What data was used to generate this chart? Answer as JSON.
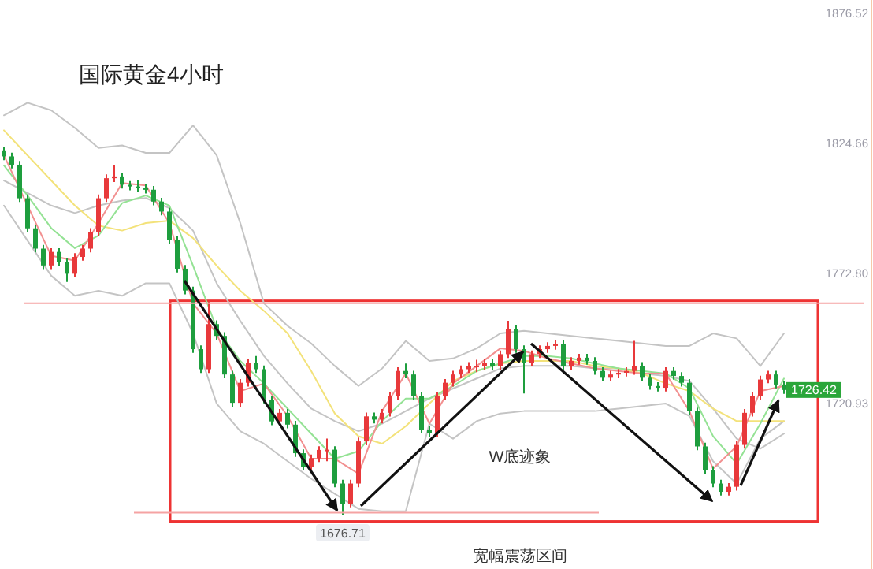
{
  "chart_data": [
    {
      "type": "candlestick",
      "title": "国际黄金4小时",
      "categories": [
        null,
        null,
        null,
        null,
        null,
        null,
        null,
        null,
        null,
        null,
        null,
        null,
        null,
        null,
        null,
        null,
        null,
        null,
        null,
        null,
        null,
        null,
        null,
        null,
        null,
        null,
        null,
        null,
        null,
        null,
        null,
        null,
        null,
        null,
        null,
        null,
        null,
        null,
        null,
        null,
        null,
        null,
        null,
        null,
        null,
        null,
        null,
        null,
        null,
        null,
        null,
        null,
        null,
        null,
        null,
        null,
        null,
        null,
        null,
        null,
        null,
        null,
        null,
        null,
        null,
        null,
        null,
        null,
        null,
        null,
        null,
        null,
        null,
        null,
        null,
        null,
        null,
        null,
        null,
        null,
        null,
        null,
        null,
        null,
        null,
        null,
        null,
        null,
        null,
        null,
        null,
        null,
        null,
        null,
        null,
        null,
        null,
        null,
        null,
        null
      ],
      "ohlc": [
        [
          1822.0,
          1823.5,
          1818.1,
          1819.6
        ],
        [
          1819.6,
          1821.1,
          1814.8,
          1816.3
        ],
        [
          1816.3,
          1817.8,
          1801.4,
          1802.9
        ],
        [
          1802.9,
          1804.4,
          1789.4,
          1790.9
        ],
        [
          1790.9,
          1792.4,
          1781.3,
          1782.8
        ],
        [
          1782.8,
          1784.3,
          1774.6,
          1776.1
        ],
        [
          1776.1,
          1783.0,
          1774.6,
          1781.5
        ],
        [
          1781.5,
          1783.0,
          1776.0,
          1777.5
        ],
        [
          1777.5,
          1779.0,
          1769.5,
          1772.8
        ],
        [
          1772.8,
          1781.0,
          1771.3,
          1779.5
        ],
        [
          1779.5,
          1784.3,
          1778.0,
          1782.8
        ],
        [
          1782.8,
          1791.0,
          1781.3,
          1789.5
        ],
        [
          1789.5,
          1804.4,
          1788.0,
          1802.9
        ],
        [
          1802.9,
          1812.4,
          1801.4,
          1810.9
        ],
        [
          1810.9,
          1816.0,
          1809.4,
          1811.6
        ],
        [
          1811.6,
          1813.1,
          1806.8,
          1808.3
        ],
        [
          1808.3,
          1809.8,
          1806.1,
          1807.6
        ],
        [
          1807.6,
          1810.0,
          1805.4,
          1806.9
        ],
        [
          1806.9,
          1808.4,
          1804.8,
          1806.3
        ],
        [
          1806.3,
          1807.8,
          1800.1,
          1801.6
        ],
        [
          1801.6,
          1803.1,
          1796.1,
          1797.6
        ],
        [
          1797.6,
          1799.1,
          1784.7,
          1786.2
        ],
        [
          1786.2,
          1787.7,
          1773.3,
          1774.8
        ],
        [
          1774.8,
          1776.3,
          1764.6,
          1766.1
        ],
        [
          1766.1,
          1767.6,
          1741.2,
          1742.7
        ],
        [
          1742.7,
          1744.2,
          1733.2,
          1734.7
        ],
        [
          1734.7,
          1762.0,
          1733.2,
          1752.7
        ],
        [
          1752.7,
          1754.2,
          1746.5,
          1748.0
        ],
        [
          1748.0,
          1749.5,
          1731.1,
          1732.6
        ],
        [
          1732.6,
          1734.1,
          1719.8,
          1721.3
        ],
        [
          1721.3,
          1730.8,
          1719.8,
          1729.3
        ],
        [
          1729.3,
          1738.8,
          1727.8,
          1737.3
        ],
        [
          1737.3,
          1740.0,
          1733.2,
          1734.7
        ],
        [
          1734.7,
          1736.2,
          1721.1,
          1722.6
        ],
        [
          1722.6,
          1724.1,
          1712.4,
          1713.9
        ],
        [
          1713.9,
          1718.8,
          1712.4,
          1717.3
        ],
        [
          1717.3,
          1718.8,
          1711.1,
          1712.6
        ],
        [
          1712.6,
          1714.1,
          1699.7,
          1701.2
        ],
        [
          1701.2,
          1702.7,
          1694.3,
          1695.8
        ],
        [
          1695.8,
          1700.7,
          1694.3,
          1699.2
        ],
        [
          1699.2,
          1704.0,
          1697.7,
          1702.5
        ],
        [
          1702.5,
          1707.0,
          1698.0,
          1702.6
        ],
        [
          1702.6,
          1704.0,
          1687.6,
          1689.1
        ],
        [
          1689.1,
          1690.6,
          1676.71,
          1681.1
        ],
        [
          1681.1,
          1690.6,
          1679.6,
          1689.1
        ],
        [
          1689.1,
          1707.4,
          1687.6,
          1705.9
        ],
        [
          1705.9,
          1717.4,
          1704.4,
          1715.9
        ],
        [
          1715.9,
          1717.4,
          1713.1,
          1714.6
        ],
        [
          1714.6,
          1718.8,
          1713.1,
          1717.3
        ],
        [
          1717.3,
          1725.5,
          1715.8,
          1724.0
        ],
        [
          1724.0,
          1735.5,
          1722.5,
          1734.0
        ],
        [
          1734.0,
          1737.0,
          1731.1,
          1732.6
        ],
        [
          1732.6,
          1734.1,
          1722.5,
          1724.0
        ],
        [
          1724.0,
          1725.5,
          1709.1,
          1710.6
        ],
        [
          1710.6,
          1712.1,
          1707.7,
          1709.2
        ],
        [
          1709.2,
          1725.5,
          1707.7,
          1724.0
        ],
        [
          1724.0,
          1730.8,
          1722.5,
          1729.3
        ],
        [
          1729.3,
          1734.1,
          1727.8,
          1732.6
        ],
        [
          1732.6,
          1736.2,
          1731.1,
          1734.7
        ],
        [
          1734.7,
          1737.5,
          1733.2,
          1736.0
        ],
        [
          1736.0,
          1738.5,
          1733.5,
          1736.1
        ],
        [
          1736.1,
          1738.8,
          1734.5,
          1737.3
        ],
        [
          1737.3,
          1738.8,
          1734.5,
          1736.0
        ],
        [
          1736.0,
          1742.2,
          1734.5,
          1740.7
        ],
        [
          1740.7,
          1754.0,
          1739.2,
          1750.7
        ],
        [
          1750.7,
          1752.2,
          1741.2,
          1742.7
        ],
        [
          1742.7,
          1744.2,
          1725.0,
          1737.3
        ],
        [
          1737.3,
          1742.2,
          1735.8,
          1740.7
        ],
        [
          1740.7,
          1744.2,
          1739.2,
          1742.7
        ],
        [
          1742.7,
          1745.5,
          1741.2,
          1744.0
        ],
        [
          1744.0,
          1746.2,
          1742.5,
          1744.7
        ],
        [
          1744.7,
          1746.2,
          1734.5,
          1736.0
        ],
        [
          1736.0,
          1739.5,
          1734.5,
          1738.0
        ],
        [
          1738.0,
          1740.8,
          1736.5,
          1739.3
        ],
        [
          1739.3,
          1740.8,
          1736.5,
          1738.0
        ],
        [
          1738.0,
          1739.5,
          1732.5,
          1734.0
        ],
        [
          1734.0,
          1735.5,
          1729.8,
          1731.3
        ],
        [
          1731.3,
          1734.1,
          1729.8,
          1732.6
        ],
        [
          1732.6,
          1734.8,
          1731.1,
          1733.3
        ],
        [
          1733.3,
          1735.5,
          1731.8,
          1734.0
        ],
        [
          1734.0,
          1746.0,
          1732.5,
          1736.0
        ],
        [
          1736.0,
          1737.5,
          1729.8,
          1731.3
        ],
        [
          1731.3,
          1732.8,
          1726.5,
          1728.0
        ],
        [
          1728.0,
          1729.5,
          1725.8,
          1727.3
        ],
        [
          1727.3,
          1735.5,
          1725.8,
          1734.0
        ],
        [
          1734.0,
          1735.5,
          1730.5,
          1732.0
        ],
        [
          1732.0,
          1733.5,
          1727.8,
          1729.3
        ],
        [
          1729.3,
          1730.8,
          1716.4,
          1717.9
        ],
        [
          1717.9,
          1719.4,
          1702.4,
          1703.9
        ],
        [
          1703.9,
          1705.4,
          1693.0,
          1694.5
        ],
        [
          1694.5,
          1696.0,
          1687.6,
          1689.1
        ],
        [
          1689.1,
          1690.6,
          1684.3,
          1685.8
        ],
        [
          1685.8,
          1689.3,
          1684.3,
          1687.8
        ],
        [
          1687.8,
          1706.0,
          1686.3,
          1704.5
        ],
        [
          1704.5,
          1718.8,
          1703.0,
          1717.3
        ],
        [
          1717.3,
          1725.5,
          1715.8,
          1724.0
        ],
        [
          1724.0,
          1732.1,
          1722.5,
          1730.6
        ],
        [
          1730.6,
          1734.1,
          1729.1,
          1732.6
        ],
        [
          1732.6,
          1734.1,
          1727.1,
          1728.6
        ],
        [
          1728.6,
          1730.1,
          1724.9,
          1726.42
        ]
      ],
      "ylim": [
        1655,
        1882
      ],
      "yticks": [
        1876.52,
        1824.66,
        {
          "value": 1772.8,
          "label": "1772.80"
        },
        1720.93
      ],
      "tick_labels": "y",
      "ref_lines": [
        {
          "axis": "y",
          "value": 1761,
          "color": "#f5a3a3"
        },
        {
          "axis": "y",
          "value": 1677.5,
          "color": "#f5a3a3"
        }
      ],
      "annotations": [
        "W底迹象",
        "宽幅震荡区间",
        {
          "text": "1676.71",
          "y": 1676.71
        },
        "1726.42"
      ]
    },
    {
      "type": "line",
      "categories": [
        null,
        null,
        null,
        null,
        null,
        null,
        null,
        null,
        null,
        null,
        null,
        null,
        null,
        null,
        null,
        null,
        null,
        null,
        null,
        null,
        null,
        null,
        null,
        null,
        null,
        null,
        null,
        null,
        null,
        null,
        null,
        null,
        null,
        null
      ],
      "ylim": [
        1655,
        1882
      ],
      "tick_labels": false,
      "series": [
        {
          "color": "#c4c4c4",
          "values": [
            1836,
            1841,
            1838,
            1831,
            1823,
            1824,
            1821,
            1821,
            1832,
            1820,
            1793,
            1761,
            1752,
            1745,
            1736,
            1728,
            1735,
            1746,
            1738,
            1739,
            1743,
            1749,
            1750,
            1749,
            1748,
            1747,
            1746,
            1745,
            1744,
            1744,
            1749,
            1747,
            1736,
            1749
          ]
        },
        {
          "color": "#c4c4c4",
          "values": [
            1800,
            1786,
            1772,
            1764,
            1766,
            1764,
            1769,
            1769,
            1749,
            1721,
            1710,
            1705,
            1698,
            1691,
            1685,
            1679,
            1678,
            1678,
            1713,
            1707,
            1714,
            1717,
            1718,
            1718,
            1718,
            1718,
            1719,
            1720,
            1721,
            1716,
            1698,
            1689,
            1707,
            1714
          ]
        },
        {
          "color": "#c4c4c4",
          "values": [
            1810,
            1805,
            1800,
            1797,
            1800,
            1802,
            1803,
            1799,
            1790,
            1769,
            1754,
            1740,
            1729,
            1719,
            1714,
            1710,
            1713,
            1718,
            1723,
            1727,
            1731,
            1735,
            1736,
            1736,
            1736,
            1735,
            1735,
            1733,
            1732,
            1730,
            1719,
            1707,
            1703,
            1709
          ]
        },
        {
          "color": "#f3e27a",
          "values": [
            1830,
            1820,
            1810,
            1800,
            1792,
            1790,
            1793,
            1794,
            1787,
            1776,
            1766,
            1758,
            1749,
            1734,
            1717,
            1708,
            1705,
            1712,
            1721,
            1730,
            1734,
            1737,
            1738,
            1738,
            1738,
            1736,
            1735,
            1733,
            1729,
            1726,
            1719,
            1714,
            1714,
            1714
          ]
        },
        {
          "color": "#94e294",
          "values": [
            1816,
            1804,
            1791,
            1783,
            1788,
            1801,
            1804,
            1800,
            1776,
            1751,
            1738,
            1729,
            1719,
            1709,
            1699,
            1702,
            1714,
            1723,
            1723,
            1728,
            1734,
            1737,
            1740,
            1740,
            1739,
            1737,
            1735,
            1734,
            1733,
            1727,
            1708,
            1697,
            1713,
            1731
          ]
        },
        {
          "color": "#f29090",
          "values": [
            1820,
            1800,
            1780,
            1778,
            1793,
            1809,
            1808,
            1793,
            1761,
            1749,
            1726,
            1729,
            1716,
            1699,
            1699,
            1693,
            1718,
            1733,
            1713,
            1729,
            1736,
            1743,
            1742,
            1739,
            1737,
            1735,
            1734,
            1733,
            1733,
            1718,
            1695,
            1704,
            1726,
            1728
          ]
        }
      ]
    }
  ]
}
